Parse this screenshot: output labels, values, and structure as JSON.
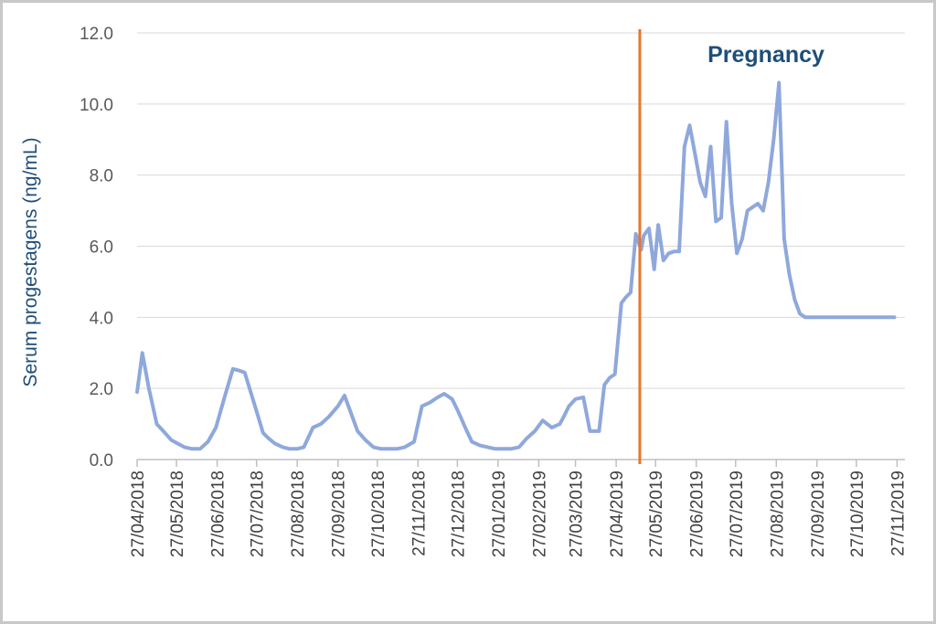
{
  "colors": {
    "series": "#8fa8dc",
    "marker": "#e8762d",
    "axis_title": "#1f4e79",
    "annotation": "#1f4e79",
    "grid": "#d9d9d9"
  },
  "chart_data": {
    "type": "line",
    "title": "",
    "xlabel": "",
    "ylabel": "Serum progestagens (ng/mL)",
    "ylim": [
      0,
      12
    ],
    "grid": true,
    "legend": "none",
    "y_ticks": [
      "0.0",
      "2.0",
      "4.0",
      "6.0",
      "8.0",
      "10.0",
      "12.0"
    ],
    "x_ticks": [
      "27/04/2018",
      "27/05/2018",
      "27/06/2018",
      "27/07/2018",
      "27/08/2018",
      "27/09/2018",
      "27/10/2018",
      "27/11/2018",
      "27/12/2018",
      "27/01/2019",
      "27/02/2019",
      "27/03/2019",
      "27/04/2019",
      "27/05/2019",
      "27/06/2019",
      "27/07/2019",
      "27/08/2019",
      "27/09/2019",
      "27/10/2019",
      "27/11/2019"
    ],
    "annotation": {
      "text": "Pregnancy",
      "event_line_date": "15/05/2019"
    },
    "series": [
      {
        "x": [
          "27/04/2018",
          "01/05/2018",
          "06/05/2018",
          "12/05/2018",
          "17/05/2018",
          "23/05/2018",
          "28/05/2018",
          "02/06/2018",
          "08/06/2018",
          "14/06/2018",
          "20/06/2018",
          "26/06/2018",
          "03/07/2018",
          "09/07/2018",
          "14/07/2018",
          "18/07/2018",
          "25/07/2018",
          "01/08/2018",
          "05/08/2018",
          "10/08/2018",
          "16/08/2018",
          "21/08/2018",
          "27/08/2018",
          "01/09/2018",
          "08/09/2018",
          "14/09/2018",
          "20/09/2018",
          "27/09/2018",
          "02/10/2018",
          "08/10/2018",
          "12/10/2018",
          "18/10/2018",
          "24/10/2018",
          "30/10/2018",
          "05/11/2018",
          "11/11/2018",
          "17/11/2018",
          "24/11/2018",
          "30/11/2018",
          "06/12/2018",
          "12/12/2018",
          "17/12/2018",
          "23/12/2018",
          "27/12/2018",
          "02/01/2019",
          "07/01/2019",
          "13/01/2019",
          "19/01/2019",
          "25/01/2019",
          "31/01/2019",
          "06/02/2019",
          "12/02/2019",
          "18/02/2019",
          "24/02/2019",
          "02/03/2019",
          "09/03/2019",
          "15/03/2019",
          "18/03/2019",
          "22/03/2019",
          "27/03/2019",
          "02/04/2019",
          "07/04/2019",
          "14/04/2019",
          "18/04/2019",
          "22/04/2019",
          "26/04/2019",
          "01/05/2019",
          "04/05/2019",
          "08/05/2019",
          "12/05/2019",
          "16/05/2019",
          "18/05/2019",
          "22/05/2019",
          "26/05/2019",
          "29/05/2019",
          "02/06/2019",
          "06/06/2019",
          "10/06/2019",
          "14/06/2019",
          "18/06/2019",
          "22/06/2019",
          "26/06/2019",
          "30/06/2019",
          "04/07/2019",
          "08/07/2019",
          "12/07/2019",
          "16/07/2019",
          "20/07/2019",
          "24/07/2019",
          "28/07/2019",
          "01/08/2019",
          "05/08/2019",
          "09/08/2019",
          "13/08/2019",
          "17/08/2019",
          "21/08/2019",
          "25/08/2019",
          "29/08/2019",
          "02/09/2019",
          "06/09/2019",
          "10/09/2019",
          "14/09/2019",
          "18/09/2019",
          "22/09/2019",
          "26/09/2019",
          "30/09/2019",
          "04/10/2019",
          "08/10/2019",
          "12/10/2019",
          "16/10/2019",
          "20/10/2019",
          "24/10/2019",
          "28/10/2019",
          "01/11/2019",
          "05/11/2019",
          "09/11/2019",
          "13/11/2019",
          "17/11/2019",
          "21/11/2019",
          "25/11/2019"
        ],
        "values": [
          1.9,
          3.0,
          2.0,
          1.0,
          0.8,
          0.55,
          0.45,
          0.35,
          0.3,
          0.3,
          0.5,
          0.9,
          1.8,
          2.55,
          2.5,
          2.45,
          1.6,
          0.75,
          0.6,
          0.45,
          0.35,
          0.3,
          0.3,
          0.35,
          0.9,
          1.0,
          1.2,
          1.5,
          1.8,
          1.2,
          0.8,
          0.55,
          0.35,
          0.3,
          0.3,
          0.3,
          0.35,
          0.5,
          1.5,
          1.6,
          1.75,
          1.85,
          1.7,
          1.4,
          0.9,
          0.5,
          0.4,
          0.35,
          0.3,
          0.3,
          0.3,
          0.35,
          0.6,
          0.8,
          1.1,
          0.9,
          1.0,
          1.2,
          1.5,
          1.7,
          1.75,
          0.8,
          0.8,
          2.1,
          2.3,
          2.4,
          4.4,
          4.55,
          4.7,
          6.35,
          5.9,
          6.3,
          6.5,
          5.35,
          6.6,
          5.6,
          5.8,
          5.85,
          5.85,
          8.8,
          9.4,
          8.6,
          7.8,
          7.4,
          8.8,
          6.7,
          6.8,
          9.5,
          7.2,
          5.8,
          6.2,
          7.0,
          7.1,
          7.2,
          7.0,
          7.8,
          9.0,
          10.6,
          6.2,
          5.2,
          4.5,
          4.1,
          4.0,
          4.0,
          4.0,
          4.0,
          4.0,
          4.0,
          4.0,
          4.0,
          4.0,
          4.0,
          4.0,
          4.0,
          4.0,
          4.0,
          4.0,
          4.0,
          4.0,
          4.0
        ]
      }
    ]
  }
}
